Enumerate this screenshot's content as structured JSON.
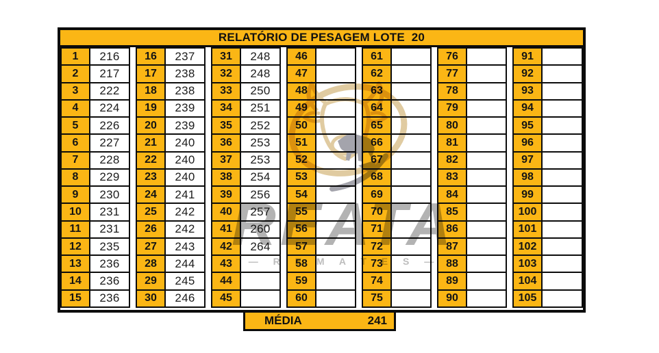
{
  "header": {
    "title": "RELATÓRIO DE PESAGEM LOTE  20"
  },
  "columns": [
    {
      "numbers": [
        "1",
        "2",
        "3",
        "4",
        "5",
        "6",
        "7",
        "8",
        "9",
        "10",
        "11",
        "12",
        "13",
        "14",
        "15"
      ],
      "weights": [
        "216",
        "217",
        "222",
        "224",
        "226",
        "227",
        "228",
        "229",
        "230",
        "231",
        "231",
        "235",
        "236",
        "236",
        "236"
      ]
    },
    {
      "numbers": [
        "16",
        "17",
        "18",
        "19",
        "20",
        "21",
        "22",
        "23",
        "24",
        "25",
        "26",
        "27",
        "28",
        "29",
        "30"
      ],
      "weights": [
        "237",
        "238",
        "238",
        "239",
        "239",
        "240",
        "240",
        "240",
        "241",
        "242",
        "242",
        "243",
        "244",
        "245",
        "246"
      ]
    },
    {
      "numbers": [
        "31",
        "32",
        "33",
        "34",
        "35",
        "36",
        "37",
        "38",
        "39",
        "40",
        "41",
        "42",
        "43",
        "44",
        "45"
      ],
      "weights": [
        "248",
        "248",
        "250",
        "251",
        "252",
        "253",
        "253",
        "254",
        "256",
        "257",
        "260",
        "264",
        "",
        "",
        ""
      ]
    },
    {
      "numbers": [
        "46",
        "47",
        "48",
        "49",
        "50",
        "51",
        "52",
        "53",
        "54",
        "55",
        "56",
        "57",
        "58",
        "59",
        "60"
      ],
      "weights": [
        "",
        "",
        "",
        "",
        "",
        "",
        "",
        "",
        "",
        "",
        "",
        "",
        "",
        "",
        ""
      ]
    },
    {
      "numbers": [
        "61",
        "62",
        "63",
        "64",
        "65",
        "66",
        "67",
        "68",
        "69",
        "70",
        "71",
        "72",
        "73",
        "74",
        "75"
      ],
      "weights": [
        "",
        "",
        "",
        "",
        "",
        "",
        "",
        "",
        "",
        "",
        "",
        "",
        "",
        "",
        ""
      ]
    },
    {
      "numbers": [
        "76",
        "77",
        "78",
        "79",
        "80",
        "81",
        "82",
        "83",
        "84",
        "85",
        "86",
        "87",
        "88",
        "89",
        "90"
      ],
      "weights": [
        "",
        "",
        "",
        "",
        "",
        "",
        "",
        "",
        "",
        "",
        "",
        "",
        "",
        "",
        ""
      ]
    },
    {
      "numbers": [
        "91",
        "92",
        "93",
        "94",
        "95",
        "96",
        "97",
        "98",
        "99",
        "100",
        "101",
        "102",
        "103",
        "104",
        "105"
      ],
      "weights": [
        "",
        "",
        "",
        "",
        "",
        "",
        "",
        "",
        "",
        "",
        "",
        "",
        "",
        "",
        ""
      ]
    }
  ],
  "row_count": 15,
  "footer": {
    "label": "MÉDIA",
    "value": "241"
  },
  "watermark": {
    "brand": "REATA",
    "tagline": "— R E M A T E S —",
    "icon": "bull-head-icon"
  },
  "colors": {
    "accent_orange": "#FBB615",
    "grid_black": "#0c0c0c",
    "watermark_gray": "#b3b3b3",
    "watermark_tan": "#e0cba1",
    "watermark_dark_gray": "#a4a4ac"
  }
}
